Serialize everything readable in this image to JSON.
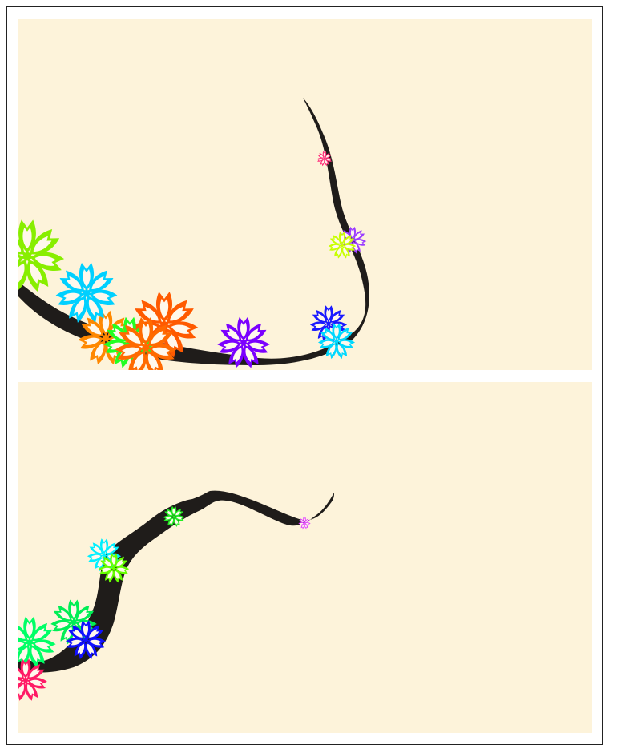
{
  "panels": [
    {
      "name": "upper-branch-panel",
      "background": "#fdf3da",
      "branch_color": "#1f1c1a",
      "flowers": [
        {
          "id": "f1",
          "color": "#ff2f7a",
          "scale": 0.25
        },
        {
          "id": "f2",
          "color": "#9b3cff",
          "scale": 0.45
        },
        {
          "id": "f3",
          "color": "#c8ff00",
          "scale": 0.45
        },
        {
          "id": "f4",
          "color": "#1a1aff",
          "scale": 0.6
        },
        {
          "id": "f5",
          "color": "#00d8ff",
          "scale": 0.6
        },
        {
          "id": "f6",
          "color": "#7b00ff",
          "scale": 0.85
        },
        {
          "id": "f7",
          "color": "#ff5a00",
          "scale": 1.1
        },
        {
          "id": "f8",
          "color": "#ff8800",
          "scale": 0.9
        },
        {
          "id": "f9",
          "color": "#22ff22",
          "scale": 0.85
        },
        {
          "id": "f10",
          "color": "#ff6a00",
          "scale": 1.0
        },
        {
          "id": "f11",
          "color": "#00d0ff",
          "scale": 1.0
        },
        {
          "id": "f12",
          "color": "#88ee00",
          "scale": 1.2
        }
      ]
    },
    {
      "name": "lower-branch-panel",
      "background": "#fdf3da",
      "branch_color": "#1f1c1a",
      "flowers": [
        {
          "id": "g1",
          "color": "#e040ff",
          "scale": 0.2
        },
        {
          "id": "g2",
          "color": "#22ee22",
          "scale": 0.35
        },
        {
          "id": "g3",
          "color": "#00f0ff",
          "scale": 0.55
        },
        {
          "id": "g4",
          "color": "#66ff00",
          "scale": 0.5
        },
        {
          "id": "g5",
          "color": "#00ee55",
          "scale": 0.75
        },
        {
          "id": "g6",
          "color": "#1010ff",
          "scale": 0.65
        },
        {
          "id": "g7",
          "color": "#00ff66",
          "scale": 0.85
        },
        {
          "id": "g8",
          "color": "#ff1a66",
          "scale": 0.7
        }
      ]
    }
  ]
}
